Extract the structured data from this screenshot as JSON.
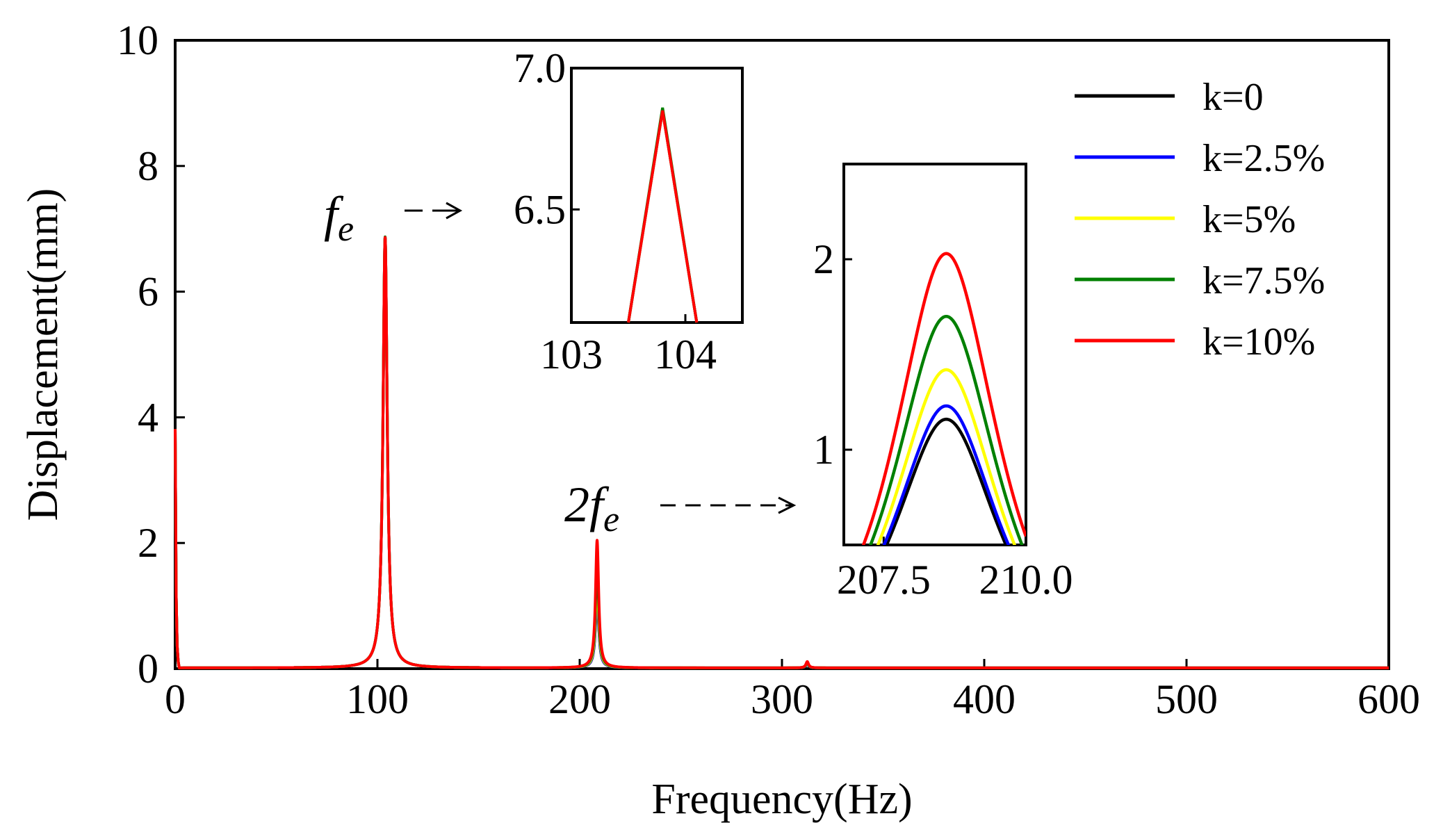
{
  "chart_data": {
    "type": "line",
    "title": "",
    "xlabel": "Frequency(Hz)",
    "ylabel": "Displacement(mm)",
    "xlim": [
      0,
      600
    ],
    "ylim": [
      0,
      10
    ],
    "xticks": [
      "0",
      "100",
      "200",
      "300",
      "400",
      "500",
      "600"
    ],
    "yticks": [
      "0",
      "2",
      "4",
      "6",
      "8",
      "10"
    ],
    "series": [
      {
        "name": "k=0",
        "color": "#000000",
        "peak1": 6.85,
        "peak2": 1.16,
        "peak3": 0.06
      },
      {
        "name": "k=2.5%",
        "color": "#0000ff",
        "peak1": 6.85,
        "peak2": 1.23,
        "peak3": 0.07
      },
      {
        "name": "k=5%",
        "color": "#ffff00",
        "peak1": 6.85,
        "peak2": 1.42,
        "peak3": 0.08
      },
      {
        "name": "k=7.5%",
        "color": "#008000",
        "peak1": 6.86,
        "peak2": 1.7,
        "peak3": 0.09
      },
      {
        "name": "k=10%",
        "color": "#ff0000",
        "peak1": 6.85,
        "peak2": 2.03,
        "peak3": 0.1
      }
    ],
    "peak_frequencies": [
      103.8,
      208.6,
      312.5
    ],
    "annotations": {
      "fe_main": "f",
      "fe_sub": "e",
      "two_fe_main": "2f",
      "two_fe_sub": "e"
    },
    "insets": [
      {
        "name": "inset-fe",
        "xlim": [
          103,
          104.5
        ],
        "ylim": [
          6.1,
          7.0
        ],
        "xticks": [
          "103",
          "104"
        ],
        "yticks": [
          "7.0",
          "6.5"
        ]
      },
      {
        "name": "inset-2fe",
        "xlim": [
          206.8,
          210.0
        ],
        "ylim": [
          0.5,
          2.5
        ],
        "xticks": [
          "207.5",
          "210.0"
        ],
        "yticks": [
          "2",
          "1"
        ]
      }
    ]
  }
}
